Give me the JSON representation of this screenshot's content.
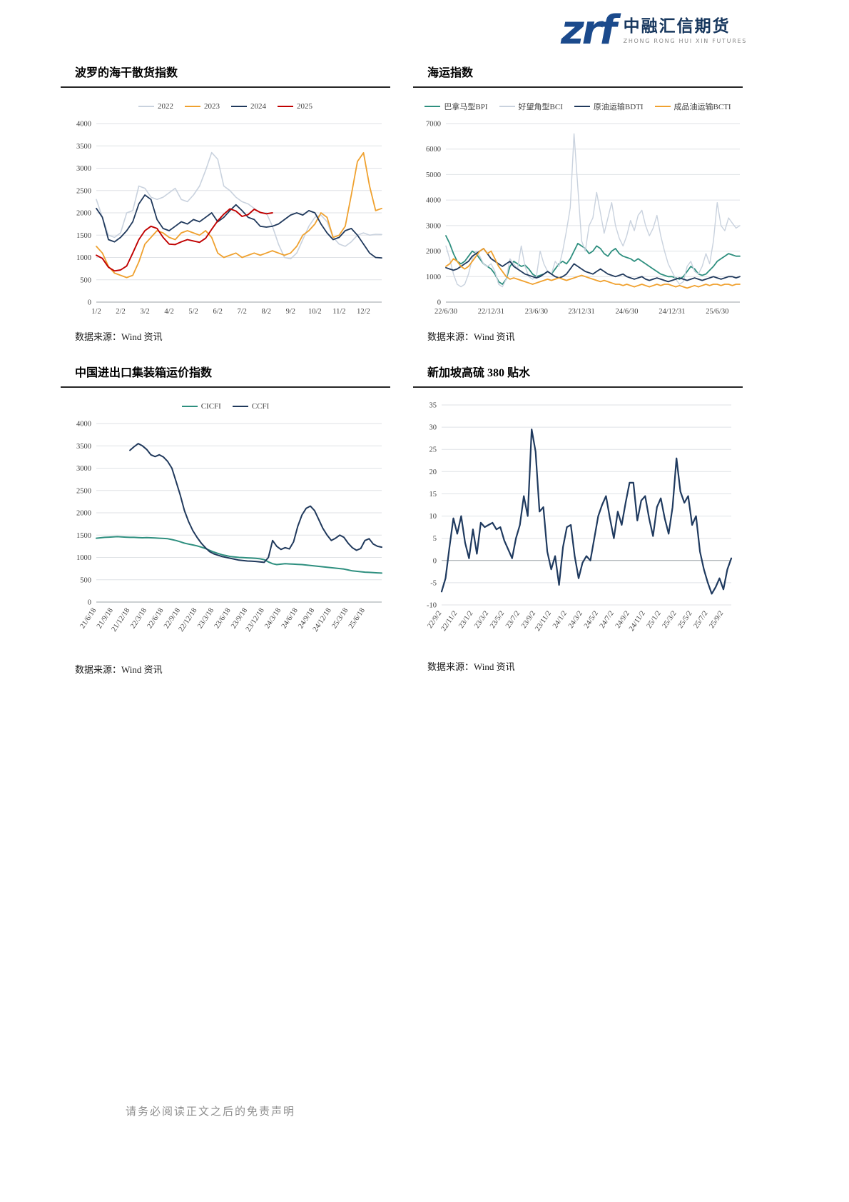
{
  "logo": {
    "mark": "zrf",
    "name_cn": "中融汇信期货",
    "name_en": "ZHONG RONG HUI XIN FUTURES"
  },
  "footer": {
    "disclaimer": "请务必阅读正文之后的免责声明"
  },
  "chart_data": [
    {
      "type": "line",
      "title": "波罗的海干散货指数",
      "source": "数据来源：Wind 资讯",
      "ylim": [
        0,
        4000
      ],
      "ystep": 500,
      "xticks": [
        "1/2",
        "2/2",
        "3/2",
        "4/2",
        "5/2",
        "6/2",
        "7/2",
        "8/2",
        "9/2",
        "10/2",
        "11/2",
        "12/2"
      ],
      "xtick_end": 0.936,
      "legend_position": "top",
      "grid": true,
      "series": [
        {
          "name": "2022",
          "color": "#c9d2de",
          "values": [
            2300,
            1900,
            1500,
            1450,
            1550,
            2000,
            2050,
            2600,
            2550,
            2350,
            2300,
            2350,
            2450,
            2550,
            2300,
            2250,
            2400,
            2600,
            2950,
            3350,
            3200,
            2600,
            2500,
            2350,
            2250,
            2200,
            2100,
            2000,
            2000,
            1700,
            1300,
            1000,
            970,
            1100,
            1400,
            1700,
            1900,
            1950,
            1800,
            1450,
            1300,
            1250,
            1350,
            1500,
            1550,
            1500,
            1520,
            1515
          ]
        },
        {
          "name": "2023",
          "color": "#efa12f",
          "values": [
            1250,
            1100,
            800,
            650,
            600,
            550,
            600,
            900,
            1300,
            1450,
            1600,
            1550,
            1450,
            1400,
            1550,
            1600,
            1550,
            1500,
            1600,
            1450,
            1100,
            1000,
            1050,
            1100,
            1000,
            1050,
            1100,
            1050,
            1100,
            1150,
            1100,
            1050,
            1100,
            1250,
            1500,
            1600,
            1750,
            2000,
            1900,
            1450,
            1500,
            1700,
            2400,
            3150,
            3346,
            2600,
            2050,
            2100
          ]
        },
        {
          "name": "2024",
          "color": "#20395c",
          "values": [
            2100,
            1900,
            1400,
            1350,
            1450,
            1600,
            1800,
            2200,
            2400,
            2300,
            1850,
            1650,
            1600,
            1700,
            1800,
            1750,
            1850,
            1800,
            1900,
            2000,
            1800,
            1900,
            2050,
            2180,
            2050,
            1900,
            1850,
            1700,
            1680,
            1700,
            1750,
            1850,
            1950,
            2000,
            1950,
            2050,
            2000,
            1750,
            1550,
            1400,
            1450,
            1600,
            1650,
            1500,
            1300,
            1100,
            1000,
            990
          ]
        },
        {
          "name": "2025",
          "color": "#c00000",
          "values": [
            1050,
            980,
            780,
            700,
            720,
            810,
            1100,
            1400,
            1600,
            1700,
            1650,
            1450,
            1300,
            1290,
            1350,
            1400,
            1370,
            1340,
            1430,
            1630,
            1820,
            1970,
            2090,
            2040,
            1920,
            1960,
            2080,
            2010,
            1980,
            2000,
            null,
            null,
            null,
            null,
            null,
            null,
            null,
            null,
            null,
            null,
            null,
            null,
            null,
            null,
            null,
            null,
            null,
            null
          ]
        }
      ]
    },
    {
      "type": "line",
      "title": "海运指数",
      "source": "数据来源：Wind 资讯",
      "ylim": [
        0,
        7000
      ],
      "ystep": 1000,
      "xticks": [
        "22/6/30",
        "22/12/31",
        "23/6/30",
        "23/12/31",
        "24/6/30",
        "24/12/31",
        "25/6/30"
      ],
      "xtick_end": 0.923,
      "legend_position": "top",
      "grid": true,
      "series": [
        {
          "name": "巴拿马型BPI",
          "color": "#2e8f7f",
          "values": [
            2600,
            2300,
            1900,
            1600,
            1500,
            1600,
            1800,
            2000,
            1900,
            1700,
            1500,
            1400,
            1300,
            1100,
            800,
            700,
            900,
            1400,
            1600,
            1500,
            1400,
            1450,
            1300,
            1100,
            1000,
            1050,
            1100,
            1200,
            1100,
            1300,
            1500,
            1600,
            1500,
            1700,
            2000,
            2300,
            2200,
            2100,
            1900,
            2000,
            2200,
            2100,
            1900,
            1800,
            2000,
            2100,
            1900,
            1800,
            1750,
            1700,
            1600,
            1700,
            1600,
            1500,
            1400,
            1300,
            1200,
            1100,
            1050,
            1000,
            1000,
            950,
            900,
            1000,
            1200,
            1400,
            1300,
            1100,
            1050,
            1100,
            1250,
            1400,
            1600,
            1700,
            1800,
            1900,
            1850,
            1800,
            1800
          ]
        },
        {
          "name": "好望角型BCI",
          "color": "#c9d2de",
          "values": [
            2200,
            1700,
            1100,
            700,
            600,
            700,
            1100,
            1700,
            2000,
            1800,
            1500,
            1400,
            1500,
            1200,
            700,
            600,
            900,
            1700,
            1500,
            1300,
            2200,
            1400,
            1000,
            900,
            1000,
            2000,
            1500,
            1200,
            1100,
            1600,
            1400,
            2000,
            2800,
            3700,
            6600,
            4500,
            2400,
            2000,
            3000,
            3300,
            4300,
            3500,
            2700,
            3300,
            3900,
            3000,
            2500,
            2200,
            2600,
            3200,
            2800,
            3400,
            3600,
            3000,
            2600,
            2900,
            3400,
            2600,
            2000,
            1500,
            1200,
            900,
            700,
            800,
            1400,
            1600,
            1200,
            1100,
            1400,
            1900,
            1500,
            2400,
            3900,
            3000,
            2800,
            3300,
            3100,
            2900,
            3000
          ]
        },
        {
          "name": "原油运输BDTI",
          "color": "#20395c",
          "values": [
            1350,
            1300,
            1250,
            1300,
            1400,
            1500,
            1600,
            1800,
            1900,
            2000,
            2100,
            1900,
            1700,
            1600,
            1500,
            1400,
            1500,
            1600,
            1400,
            1300,
            1200,
            1100,
            1050,
            1000,
            950,
            1000,
            1100,
            1200,
            1100,
            1000,
            950,
            1000,
            1100,
            1300,
            1500,
            1400,
            1300,
            1200,
            1150,
            1100,
            1200,
            1300,
            1200,
            1100,
            1050,
            1000,
            1050,
            1100,
            1000,
            950,
            900,
            950,
            1000,
            900,
            850,
            900,
            950,
            900,
            850,
            800,
            850,
            900,
            950,
            900,
            850,
            900,
            950,
            900,
            850,
            900,
            950,
            1000,
            950,
            900,
            950,
            1000,
            1000,
            950,
            1000
          ]
        },
        {
          "name": "成品油运输BCTI",
          "color": "#f0a12f",
          "values": [
            1400,
            1500,
            1700,
            1600,
            1400,
            1300,
            1400,
            1600,
            1800,
            2000,
            2100,
            1900,
            2000,
            1700,
            1400,
            1200,
            1000,
            900,
            950,
            900,
            850,
            800,
            750,
            700,
            750,
            800,
            850,
            900,
            850,
            900,
            950,
            900,
            850,
            900,
            950,
            1000,
            1050,
            1000,
            950,
            900,
            850,
            800,
            850,
            800,
            750,
            700,
            700,
            650,
            700,
            650,
            600,
            650,
            700,
            650,
            600,
            650,
            700,
            650,
            700,
            700,
            650,
            600,
            650,
            600,
            550,
            600,
            650,
            600,
            650,
            700,
            650,
            700,
            700,
            650,
            700,
            700,
            650,
            700,
            700
          ]
        }
      ]
    },
    {
      "type": "line",
      "title": "中国进出口集装箱运价指数",
      "source": "数据来源：Wind 资讯",
      "ylim": [
        0,
        4000
      ],
      "ystep": 500,
      "xticks": [
        "21/6/18",
        "21/9/18",
        "21/12/18",
        "22/3/18",
        "22/6/18",
        "22/9/18",
        "22/12/18",
        "23/3/18",
        "23/6/18",
        "23/9/18",
        "23/12/18",
        "24/3/18",
        "24/6/18",
        "24/9/18",
        "24/12/18",
        "25/3/18",
        "25/6/18"
      ],
      "xtick_end": 0.941,
      "legend_position": "top",
      "grid": true,
      "series": [
        {
          "name": "CICFI",
          "color": "#2e8f7f",
          "values": [
            1430,
            1440,
            1450,
            1455,
            1460,
            1465,
            1460,
            1455,
            1450,
            1450,
            1445,
            1440,
            1445,
            1440,
            1435,
            1430,
            1425,
            1420,
            1400,
            1380,
            1350,
            1320,
            1300,
            1280,
            1260,
            1230,
            1200,
            1160,
            1120,
            1090,
            1060,
            1040,
            1020,
            1010,
            1000,
            995,
            990,
            985,
            980,
            970,
            950,
            900,
            860,
            840,
            850,
            860,
            855,
            850,
            845,
            840,
            830,
            820,
            810,
            800,
            790,
            780,
            770,
            760,
            750,
            740,
            720,
            700,
            690,
            680,
            670,
            665,
            660,
            655,
            650
          ]
        },
        {
          "name": "CCFI",
          "color": "#20395c",
          "values": [
            null,
            null,
            null,
            null,
            null,
            null,
            null,
            null,
            3400,
            3480,
            3550,
            3500,
            3420,
            3300,
            3260,
            3300,
            3250,
            3150,
            3000,
            2700,
            2400,
            2050,
            1800,
            1600,
            1450,
            1320,
            1220,
            1130,
            1080,
            1050,
            1020,
            1000,
            980,
            960,
            940,
            930,
            920,
            915,
            910,
            900,
            890,
            1000,
            1380,
            1250,
            1180,
            1220,
            1190,
            1350,
            1700,
            1950,
            2100,
            2150,
            2050,
            1850,
            1650,
            1500,
            1380,
            1430,
            1500,
            1450,
            1320,
            1220,
            1160,
            1200,
            1380,
            1420,
            1300,
            1250,
            1230
          ]
        }
      ]
    },
    {
      "type": "line",
      "title": "新加坡高硫 380 贴水",
      "source": "数据来源：Wind 资讯",
      "ylim": [
        -10,
        35
      ],
      "ystep": 5,
      "xticks": [
        "22/9/2",
        "22/11/2",
        "23/1/2",
        "23/3/2",
        "23/5/2",
        "23/7/2",
        "23/9/2",
        "23/11/2",
        "24/1/2",
        "24/3/2",
        "24/5/2",
        "24/7/2",
        "24/9/2",
        "24/11/2",
        "25/1/2",
        "25/3/2",
        "25/5/2",
        "25/7/2",
        "25/9/2"
      ],
      "xtick_end": 0.973,
      "legend_position": "none",
      "grid": true,
      "series": [
        {
          "name": "",
          "color": "#1f3a5f",
          "values": [
            -7,
            -4,
            3,
            9.5,
            6,
            10,
            4,
            0.5,
            7,
            1.5,
            8.5,
            7.5,
            8,
            8.5,
            7,
            7.5,
            4.5,
            2.5,
            0.5,
            5,
            8,
            14.5,
            10,
            29.5,
            24.5,
            11,
            12,
            2,
            -2,
            1,
            -5.5,
            3,
            7.5,
            8,
            1,
            -4,
            -0.5,
            1,
            0,
            5,
            10,
            12.5,
            14.5,
            9.5,
            5,
            11,
            8,
            13,
            17.5,
            17.5,
            9,
            13.5,
            14.5,
            9.5,
            5.5,
            12,
            14,
            9.5,
            6,
            12,
            23,
            15.5,
            13,
            14.5,
            8,
            10,
            2,
            -2,
            -5,
            -7.5,
            -6,
            -4,
            -6.5,
            -2,
            0.5
          ]
        }
      ]
    }
  ]
}
